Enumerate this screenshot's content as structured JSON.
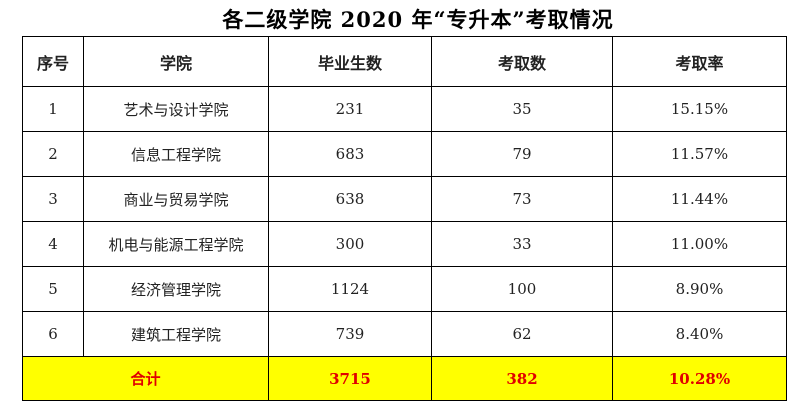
{
  "title": "各二级学院 2020 年“专升本”考取情况",
  "table": {
    "header": [
      "序号",
      "学院",
      "毕业生数",
      "考取数",
      "考取率"
    ],
    "rows": [
      [
        "1",
        "艺术与设计学院",
        "231",
        "35",
        "15.15%"
      ],
      [
        "2",
        "信息工程学院",
        "683",
        "79",
        "11.57%"
      ],
      [
        "3",
        "商业与贸易学院",
        "638",
        "73",
        "11.44%"
      ],
      [
        "4",
        "机电与能源工程学院",
        "300",
        "33",
        "11.00%"
      ],
      [
        "5",
        "经济管理学院",
        "1124",
        "100",
        "8.90%"
      ],
      [
        "6",
        "建筑工程学院",
        "739",
        "62",
        "8.40%"
      ]
    ],
    "total": [
      "合计",
      "3715",
      "382",
      "10.28%"
    ]
  }
}
